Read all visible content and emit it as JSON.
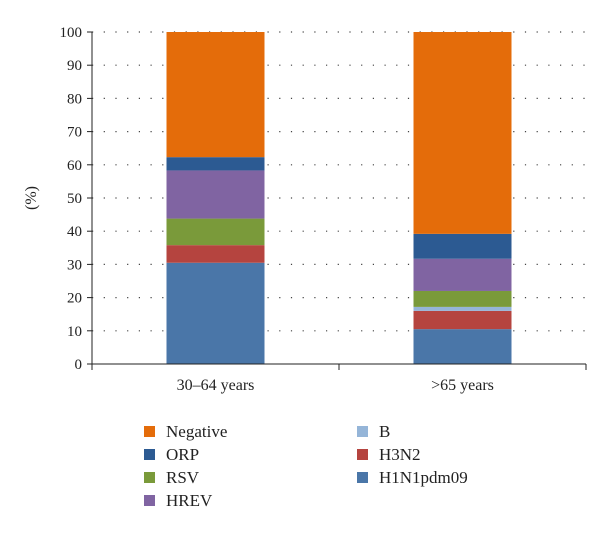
{
  "chart_data": {
    "type": "bar",
    "stacked": true,
    "categories": [
      "30–64 years",
      ">65 years"
    ],
    "ylabel": "(%)",
    "ylim": [
      0,
      100
    ],
    "yticks": [
      0,
      10,
      20,
      30,
      40,
      50,
      60,
      70,
      80,
      90,
      100
    ],
    "grid": "dotted-horizontal",
    "legend_position": "bottom",
    "series": [
      {
        "name": "H1N1pdm09",
        "color": "#4a76a8",
        "values": [
          30.5,
          10.5
        ]
      },
      {
        "name": "H3N2",
        "color": "#b5443f",
        "values": [
          5.3,
          5.5
        ]
      },
      {
        "name": "B",
        "color": "#95b5d8",
        "values": [
          0,
          1.2
        ]
      },
      {
        "name": "RSV",
        "color": "#7a9a3a",
        "values": [
          8.0,
          4.8
        ]
      },
      {
        "name": "HREV",
        "color": "#8064a2",
        "values": [
          14.5,
          9.7
        ]
      },
      {
        "name": "ORP",
        "color": "#2c5a92",
        "values": [
          4.0,
          7.5
        ]
      },
      {
        "name": "Negative",
        "color": "#e46c0a",
        "values": [
          37.7,
          60.8
        ]
      }
    ]
  }
}
